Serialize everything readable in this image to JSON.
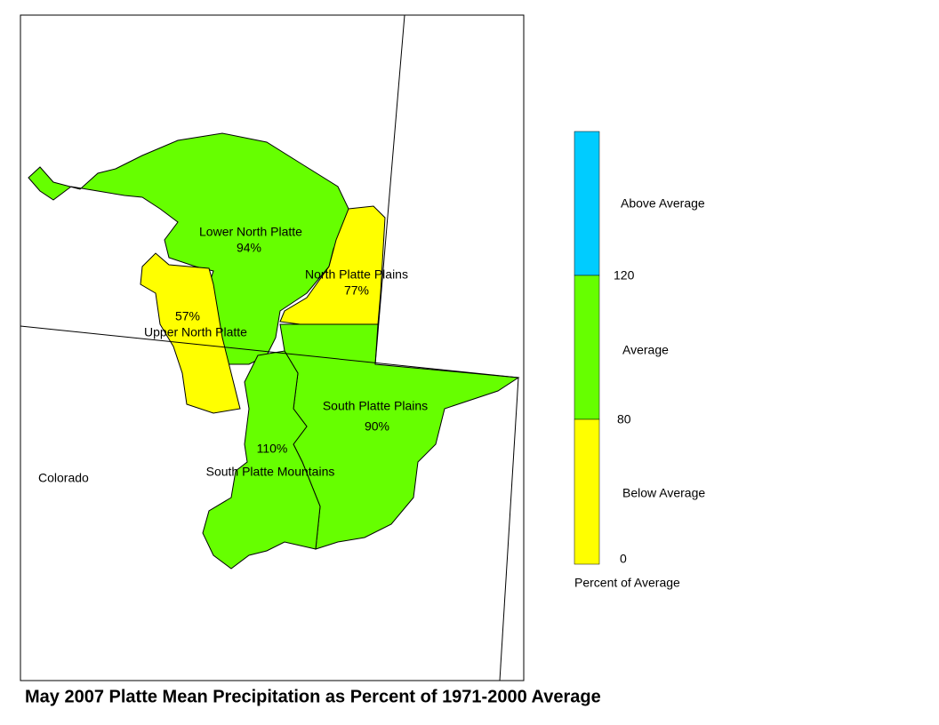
{
  "title": "May 2007 Platte Mean Precipitation as Percent of 1971-2000 Average",
  "state_label": "Colorado",
  "regions": [
    {
      "name": "Lower North Platte",
      "value": "94%",
      "color": "#66ff00"
    },
    {
      "name": "North Platte Plains",
      "value": "77%",
      "color": "#ffff00"
    },
    {
      "name": "Upper North Platte",
      "value": "57%",
      "color": "#ffff00"
    },
    {
      "name": "South Platte Plains",
      "value": "90%",
      "color": "#66ff00"
    },
    {
      "name": "South Platte Mountains",
      "value": "110%",
      "color": "#66ff00"
    }
  ],
  "legend": {
    "title": "Percent of Average",
    "classes": [
      {
        "label": "Above Average",
        "color": "#00ccff"
      },
      {
        "label": "Average",
        "color": "#66ff00"
      },
      {
        "label": "Below Average",
        "color": "#ffff00"
      }
    ],
    "breaks": [
      "120",
      "80",
      "0"
    ]
  }
}
